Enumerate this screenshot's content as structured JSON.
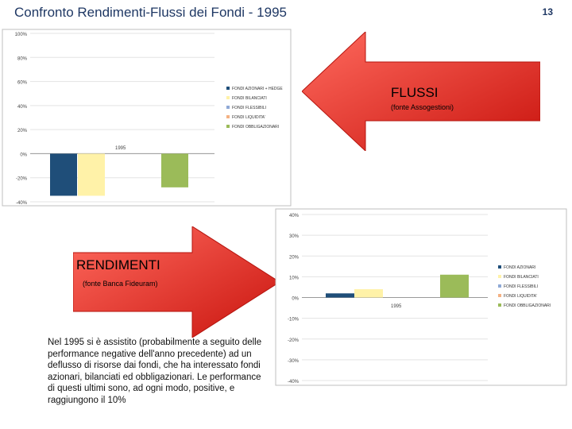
{
  "slide": {
    "title": "Confronto Rendimenti-Flussi dei Fondi - 1995",
    "page_number": "13",
    "paragraph": "Nel 1995 si è assistito (probabilmente a seguito delle performance negative dell'anno precedente) ad un deflusso di risorse dai fondi, che ha interessato fondi azionari, bilanciati ed obbligazionari. Le performance di questi ultimi sono, ad ogni modo, positive, e raggiungono il 10%"
  },
  "arrows": {
    "flussi": {
      "title": "FLUSSI",
      "subtitle": "(fonte Assogestioni)"
    },
    "rendimenti": {
      "title": "RENDIMENTI",
      "subtitle": "(fonte Banca Fideuram)"
    }
  },
  "colors": {
    "arrow_red": "#e8251f",
    "azionari": "#1f4e79",
    "bilanciati": "#fff2a8",
    "flessibili": "#8fa9d6",
    "liquidita": "#f4b183",
    "obbligazionari": "#9bbb59"
  },
  "chart_data": [
    {
      "type": "bar",
      "categories": [
        "1995"
      ],
      "ylim": [
        -40,
        100
      ],
      "yticks": [
        "100%",
        "80%",
        "60%",
        "40%",
        "20%",
        "0%",
        "-20%",
        "-40%"
      ],
      "grid": true,
      "legend_position": "right",
      "series": [
        {
          "name": "FONDI AZIONARI + HEDGE",
          "values": [
            -35
          ],
          "color": "#1f4e79"
        },
        {
          "name": "FONDI BILANCIATI",
          "values": [
            -35
          ],
          "color": "#fff2a8"
        },
        {
          "name": "FONDI FLESSIBILI",
          "values": [
            0
          ],
          "color": "#8fa9d6"
        },
        {
          "name": "FONDI LIQUIDITA'",
          "values": [
            0
          ],
          "color": "#f4b183"
        },
        {
          "name": "FONDI OBBLIGAZIONARI",
          "values": [
            -28
          ],
          "color": "#9bbb59"
        }
      ]
    },
    {
      "type": "bar",
      "categories": [
        "1995"
      ],
      "ylim": [
        -40,
        40
      ],
      "yticks": [
        "40%",
        "30%",
        "20%",
        "10%",
        "0%",
        "-10%",
        "-20%",
        "-30%",
        "-40%"
      ],
      "grid": true,
      "legend_position": "right",
      "series": [
        {
          "name": "FONDI AZIONARI",
          "values": [
            2
          ],
          "color": "#1f4e79"
        },
        {
          "name": "FONDI BILANCIATI",
          "values": [
            4
          ],
          "color": "#fff2a8"
        },
        {
          "name": "FONDI FLESSIBILI",
          "values": [
            0
          ],
          "color": "#8fa9d6"
        },
        {
          "name": "FONDI LIQUIDITA'",
          "values": [
            0
          ],
          "color": "#f4b183"
        },
        {
          "name": "FONDI OBBLIGAZIONARI",
          "values": [
            11
          ],
          "color": "#9bbb59"
        }
      ]
    }
  ]
}
